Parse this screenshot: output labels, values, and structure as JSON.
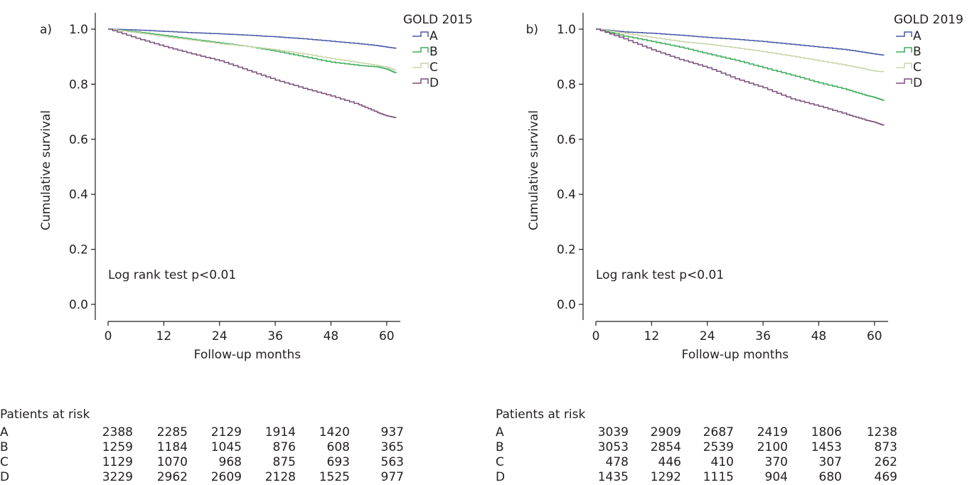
{
  "colors": {
    "A": "#4a5aa8",
    "B": "#3cab5a",
    "C": "#c8d6a8",
    "D": "#7a4f7a",
    "axis": "#231f20"
  },
  "chart_data": [
    {
      "type": "line",
      "panel_label": "a)",
      "legend_title": "GOLD 2015",
      "legend_position": "top-right",
      "xlabel": "Follow-up months",
      "ylabel": "Cumulative survival",
      "xlim": [
        0,
        62
      ],
      "ylim": [
        0,
        1.0
      ],
      "xticks": [
        "0",
        "12",
        "24",
        "36",
        "48",
        "60"
      ],
      "yticks": [
        "0.0",
        "0.2",
        "0.4",
        "0.6",
        "0.8",
        "1.0"
      ],
      "annotation": "Log rank test p<0.01",
      "series": [
        {
          "name": "A",
          "x": [
            0,
            6,
            12,
            18,
            24,
            30,
            36,
            42,
            48,
            54,
            58,
            60,
            62
          ],
          "y": [
            1.0,
            0.997,
            0.992,
            0.987,
            0.983,
            0.978,
            0.972,
            0.965,
            0.956,
            0.947,
            0.94,
            0.935,
            0.93
          ]
        },
        {
          "name": "B",
          "x": [
            0,
            6,
            12,
            18,
            24,
            30,
            36,
            42,
            48,
            54,
            58,
            60,
            62
          ],
          "y": [
            1.0,
            0.99,
            0.977,
            0.963,
            0.95,
            0.937,
            0.92,
            0.9,
            0.88,
            0.868,
            0.863,
            0.855,
            0.84
          ]
        },
        {
          "name": "C",
          "x": [
            0,
            6,
            12,
            18,
            24,
            30,
            36,
            42,
            48,
            54,
            58,
            60,
            62
          ],
          "y": [
            1.0,
            0.987,
            0.973,
            0.96,
            0.947,
            0.937,
            0.925,
            0.91,
            0.893,
            0.878,
            0.868,
            0.862,
            0.85
          ]
        },
        {
          "name": "D",
          "x": [
            0,
            6,
            12,
            18,
            24,
            30,
            36,
            42,
            48,
            54,
            58,
            60,
            62
          ],
          "y": [
            1.0,
            0.967,
            0.937,
            0.91,
            0.885,
            0.85,
            0.815,
            0.785,
            0.757,
            0.725,
            0.697,
            0.685,
            0.678
          ]
        }
      ],
      "risk_table": {
        "title": "Patients at risk",
        "rows": [
          {
            "group": "A",
            "values": [
              "2388",
              "2285",
              "2129",
              "1914",
              "1420",
              "937"
            ]
          },
          {
            "group": "B",
            "values": [
              "1259",
              "1184",
              "1045",
              "876",
              "608",
              "365"
            ]
          },
          {
            "group": "C",
            "values": [
              "1129",
              "1070",
              "968",
              "875",
              "693",
              "563"
            ]
          },
          {
            "group": "D",
            "values": [
              "3229",
              "2962",
              "2609",
              "2128",
              "1525",
              "977"
            ]
          }
        ]
      }
    },
    {
      "type": "line",
      "panel_label": "b)",
      "legend_title": "GOLD 2019",
      "legend_position": "top-right",
      "xlabel": "Follow-up months",
      "ylabel": "Cumulative survival",
      "xlim": [
        0,
        62
      ],
      "ylim": [
        0,
        1.0
      ],
      "xticks": [
        "0",
        "12",
        "24",
        "36",
        "48",
        "60"
      ],
      "yticks": [
        "0.0",
        "0.2",
        "0.4",
        "0.6",
        "0.8",
        "1.0"
      ],
      "annotation": "Log rank test p<0.01",
      "series": [
        {
          "name": "A",
          "x": [
            0,
            6,
            12,
            18,
            24,
            30,
            36,
            42,
            48,
            54,
            58,
            60,
            62
          ],
          "y": [
            1.0,
            0.99,
            0.985,
            0.978,
            0.97,
            0.963,
            0.955,
            0.945,
            0.935,
            0.925,
            0.915,
            0.91,
            0.905
          ]
        },
        {
          "name": "B",
          "x": [
            0,
            6,
            12,
            18,
            24,
            30,
            36,
            42,
            48,
            54,
            58,
            60,
            62
          ],
          "y": [
            1.0,
            0.975,
            0.955,
            0.935,
            0.91,
            0.887,
            0.86,
            0.833,
            0.805,
            0.78,
            0.76,
            0.752,
            0.74
          ]
        },
        {
          "name": "C",
          "x": [
            0,
            6,
            12,
            18,
            24,
            30,
            36,
            42,
            48,
            54,
            58,
            60,
            62
          ],
          "y": [
            1.0,
            0.985,
            0.97,
            0.955,
            0.945,
            0.932,
            0.918,
            0.902,
            0.885,
            0.868,
            0.855,
            0.848,
            0.845
          ]
        },
        {
          "name": "D",
          "x": [
            0,
            6,
            12,
            18,
            24,
            30,
            36,
            42,
            48,
            54,
            58,
            60,
            62
          ],
          "y": [
            1.0,
            0.965,
            0.925,
            0.89,
            0.86,
            0.82,
            0.787,
            0.747,
            0.72,
            0.69,
            0.67,
            0.662,
            0.65
          ]
        }
      ],
      "risk_table": {
        "title": "Patients at risk",
        "rows": [
          {
            "group": "A",
            "values": [
              "3039",
              "2909",
              "2687",
              "2419",
              "1806",
              "1238"
            ]
          },
          {
            "group": "B",
            "values": [
              "3053",
              "2854",
              "2539",
              "2100",
              "1453",
              "873"
            ]
          },
          {
            "group": "C",
            "values": [
              "478",
              "446",
              "410",
              "370",
              "307",
              "262"
            ]
          },
          {
            "group": "D",
            "values": [
              "1435",
              "1292",
              "1115",
              "904",
              "680",
              "469"
            ]
          }
        ]
      }
    }
  ]
}
